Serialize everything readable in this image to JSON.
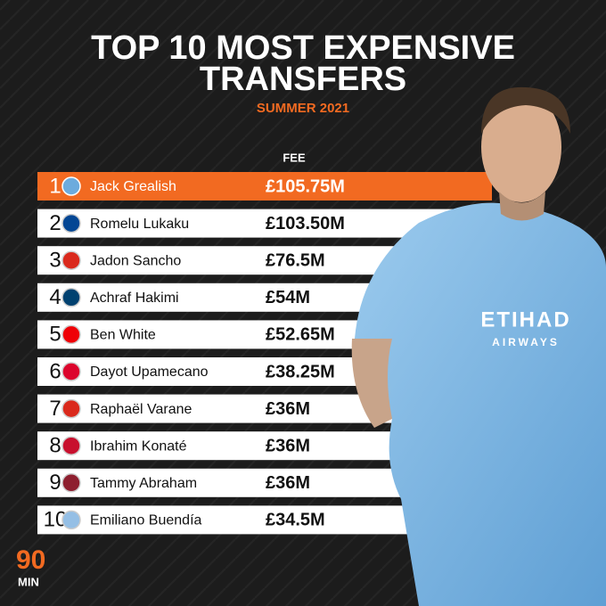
{
  "header": {
    "title_lines": [
      "TOP 10 MOST EXPENSIVE",
      "TRANSFERS"
    ],
    "subtitle": "SUMMER 2021"
  },
  "table": {
    "columns": [
      "FEE"
    ],
    "rows": [
      [
        "1",
        "Jack Grealish",
        "£105.75M"
      ],
      [
        "2",
        "Romelu Lukaku",
        "£103.50M"
      ],
      [
        "3",
        "Jadon Sancho",
        "£76.5M"
      ],
      [
        "4",
        "Achraf Hakimi",
        "£54M"
      ],
      [
        "5",
        "Ben White",
        "£52.65M"
      ],
      [
        "6",
        "Dayot Upamecano",
        "£38.25M"
      ],
      [
        "7",
        "Raphaël Varane",
        "£36M"
      ],
      [
        "8",
        "Ibrahim Konaté",
        "£36M"
      ],
      [
        "9",
        "Tammy Abraham",
        "£36M"
      ],
      [
        "10",
        "Emiliano Buendía",
        "£34.5M"
      ]
    ]
  },
  "logo": {
    "lines": [
      "90",
      "MIN"
    ]
  }
}
